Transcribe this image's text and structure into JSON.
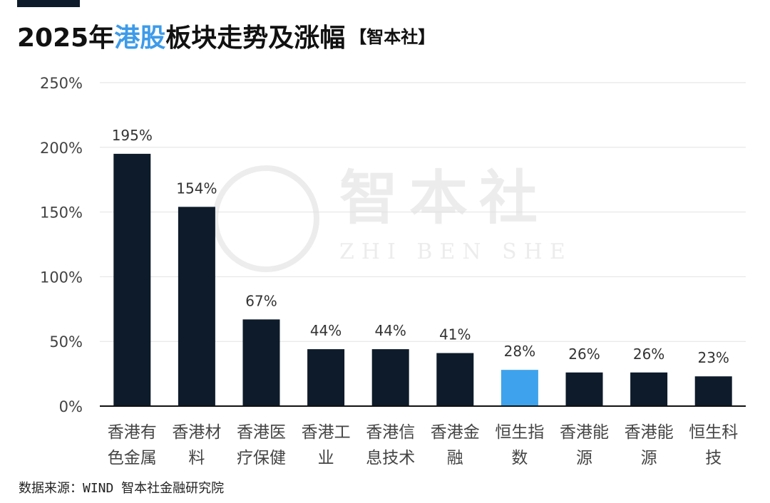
{
  "title": {
    "prefix": "2025年",
    "highlight": "港股",
    "suffix": "板块走势及涨幅",
    "tag": "【智本社】"
  },
  "watermark": {
    "main": "智本社",
    "sub": "ZHI BEN SHE"
  },
  "source": "数据来源：WIND 智本社金融研究院",
  "colors": {
    "bar": "#0d1b2a",
    "highlight_bar": "#3ea3ec",
    "title_highlight": "#3d9be9"
  },
  "chart_data": {
    "type": "bar",
    "ylim": [
      0,
      250
    ],
    "yticks": [
      0,
      50,
      100,
      150,
      200,
      250
    ],
    "ytick_labels": [
      "0%",
      "50%",
      "100%",
      "150%",
      "200%",
      "250%"
    ],
    "grid": true,
    "categories": [
      [
        "香港有",
        "色金属"
      ],
      [
        "香港材",
        "料"
      ],
      [
        "香港医",
        "疗保健"
      ],
      [
        "香港工",
        "业"
      ],
      [
        "香港信",
        "息技术"
      ],
      [
        "香港金",
        "融"
      ],
      [
        "恒生指",
        "数"
      ],
      [
        "香港能",
        "源"
      ],
      [
        "香港能",
        "源"
      ],
      [
        "恒生科",
        "技"
      ]
    ],
    "values": [
      195,
      154,
      67,
      44,
      44,
      41,
      28,
      26,
      26,
      23
    ],
    "value_labels": [
      "195%",
      "154%",
      "67%",
      "44%",
      "44%",
      "41%",
      "28%",
      "26%",
      "26%",
      "23%"
    ],
    "highlight_index": 6
  }
}
